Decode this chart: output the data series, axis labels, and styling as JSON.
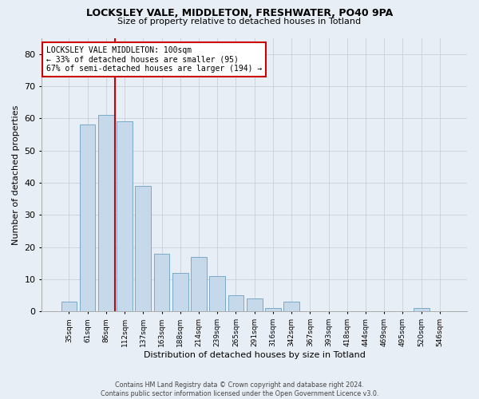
{
  "title1": "LOCKSLEY VALE, MIDDLETON, FRESHWATER, PO40 9PA",
  "title2": "Size of property relative to detached houses in Totland",
  "xlabel": "Distribution of detached houses by size in Totland",
  "ylabel": "Number of detached properties",
  "categories": [
    "35sqm",
    "61sqm",
    "86sqm",
    "112sqm",
    "137sqm",
    "163sqm",
    "188sqm",
    "214sqm",
    "239sqm",
    "265sqm",
    "291sqm",
    "316sqm",
    "342sqm",
    "367sqm",
    "393sqm",
    "418sqm",
    "444sqm",
    "469sqm",
    "495sqm",
    "520sqm",
    "546sqm"
  ],
  "values": [
    3,
    58,
    61,
    59,
    39,
    18,
    12,
    17,
    11,
    5,
    4,
    1,
    3,
    0,
    0,
    0,
    0,
    0,
    0,
    1,
    0
  ],
  "bar_color": "#c6d9ea",
  "bar_edge_color": "#7aaac8",
  "vline_color": "#cc0000",
  "vline_position": 2.5,
  "annotation_text": "LOCKSLEY VALE MIDDLETON: 100sqm\n← 33% of detached houses are smaller (95)\n67% of semi-detached houses are larger (194) →",
  "annotation_box_color": "#ffffff",
  "annotation_box_edge": "#cc0000",
  "ylim": [
    0,
    85
  ],
  "yticks": [
    0,
    10,
    20,
    30,
    40,
    50,
    60,
    70,
    80
  ],
  "grid_color": "#c8cfd8",
  "bg_color": "#e8eef5",
  "fig_bg_color": "#e8eef5",
  "footnote": "Contains HM Land Registry data © Crown copyright and database right 2024.\nContains public sector information licensed under the Open Government Licence v3.0."
}
